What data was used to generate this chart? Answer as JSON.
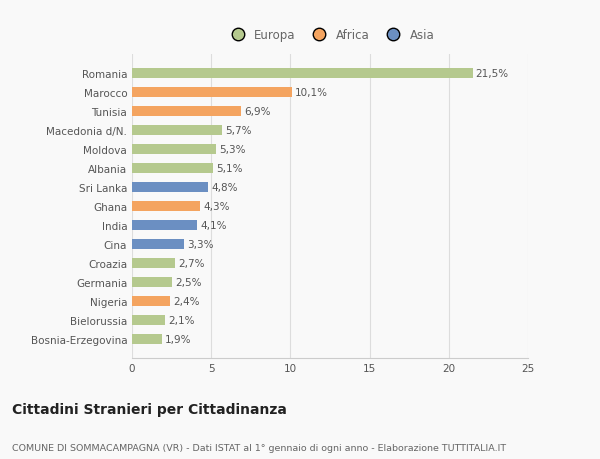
{
  "countries": [
    "Romania",
    "Marocco",
    "Tunisia",
    "Macedonia d/N.",
    "Moldova",
    "Albania",
    "Sri Lanka",
    "Ghana",
    "India",
    "Cina",
    "Croazia",
    "Germania",
    "Nigeria",
    "Bielorussia",
    "Bosnia-Erzegovina"
  ],
  "values": [
    21.5,
    10.1,
    6.9,
    5.7,
    5.3,
    5.1,
    4.8,
    4.3,
    4.1,
    3.3,
    2.7,
    2.5,
    2.4,
    2.1,
    1.9
  ],
  "labels": [
    "21,5%",
    "10,1%",
    "6,9%",
    "5,7%",
    "5,3%",
    "5,1%",
    "4,8%",
    "4,3%",
    "4,1%",
    "3,3%",
    "2,7%",
    "2,5%",
    "2,4%",
    "2,1%",
    "1,9%"
  ],
  "continents": [
    "Europa",
    "Africa",
    "Africa",
    "Europa",
    "Europa",
    "Europa",
    "Asia",
    "Africa",
    "Asia",
    "Asia",
    "Europa",
    "Europa",
    "Africa",
    "Europa",
    "Europa"
  ],
  "colors": {
    "Europa": "#b5c98e",
    "Africa": "#f4a460",
    "Asia": "#6b8fc2"
  },
  "legend_labels": [
    "Europa",
    "Africa",
    "Asia"
  ],
  "xlim": [
    0,
    25
  ],
  "xticks": [
    0,
    5,
    10,
    15,
    20,
    25
  ],
  "title": "Cittadini Stranieri per Cittadinanza",
  "subtitle": "COMUNE DI SOMMACAMPAGNA (VR) - Dati ISTAT al 1° gennaio di ogni anno - Elaborazione TUTTITALIA.IT",
  "bg_color": "#f9f9f9",
  "bar_height": 0.55,
  "label_fontsize": 7.5,
  "title_fontsize": 10,
  "subtitle_fontsize": 6.8,
  "ytick_fontsize": 7.5,
  "xtick_fontsize": 7.5,
  "legend_fontsize": 8.5
}
